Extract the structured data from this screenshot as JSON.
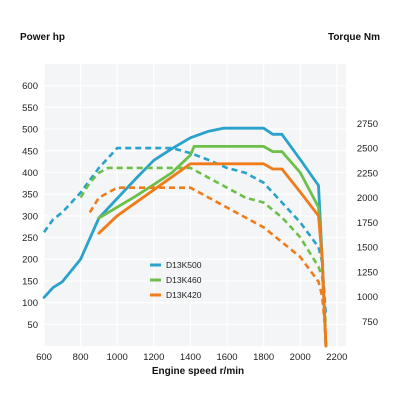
{
  "chart_data": {
    "type": "line",
    "left_axis_title": "Power hp",
    "right_axis_title": "Torque Nm",
    "xlabel": "Engine speed r/min",
    "xlim": [
      600,
      2250
    ],
    "y_left_lim": [
      0,
      650
    ],
    "y_right_lim": [
      500,
      3350
    ],
    "x_ticks": [
      600,
      800,
      1000,
      1200,
      1400,
      1600,
      1800,
      2000,
      2200
    ],
    "y_left_ticks": [
      50,
      100,
      150,
      200,
      250,
      300,
      350,
      400,
      450,
      500,
      550,
      600
    ],
    "y_right_ticks": [
      750,
      1000,
      1250,
      1500,
      1750,
      2000,
      2250,
      2500,
      2750
    ],
    "grid": true,
    "legend_position": "center-left",
    "series": [
      {
        "name": "D13K500",
        "color": "#2aa2cb",
        "power_hp": [
          [
            600,
            112
          ],
          [
            650,
            135
          ],
          [
            700,
            148
          ],
          [
            800,
            200
          ],
          [
            900,
            295
          ],
          [
            1000,
            340
          ],
          [
            1100,
            385
          ],
          [
            1200,
            428
          ],
          [
            1300,
            455
          ],
          [
            1400,
            480
          ],
          [
            1500,
            495
          ],
          [
            1580,
            502
          ],
          [
            1700,
            502
          ],
          [
            1800,
            502
          ],
          [
            1850,
            488
          ],
          [
            1900,
            488
          ],
          [
            2000,
            430
          ],
          [
            2100,
            370
          ],
          [
            2120,
            200
          ],
          [
            2140,
            0
          ]
        ],
        "torque_nm": [
          [
            600,
            1650
          ],
          [
            650,
            1780
          ],
          [
            700,
            1850
          ],
          [
            800,
            2050
          ],
          [
            900,
            2300
          ],
          [
            950,
            2400
          ],
          [
            1000,
            2500
          ],
          [
            1100,
            2500
          ],
          [
            1300,
            2500
          ],
          [
            1400,
            2450
          ],
          [
            1500,
            2380
          ],
          [
            1600,
            2300
          ],
          [
            1700,
            2250
          ],
          [
            1800,
            2150
          ],
          [
            1850,
            2050
          ],
          [
            1900,
            1950
          ],
          [
            2000,
            1750
          ],
          [
            2100,
            1500
          ],
          [
            2120,
            1350
          ],
          [
            2140,
            800
          ]
        ]
      },
      {
        "name": "D13K460",
        "color": "#6cc04a",
        "power_hp": [
          [
            900,
            295
          ],
          [
            1000,
            320
          ],
          [
            1100,
            345
          ],
          [
            1200,
            372
          ],
          [
            1300,
            400
          ],
          [
            1400,
            440
          ],
          [
            1420,
            460
          ],
          [
            1600,
            460
          ],
          [
            1700,
            460
          ],
          [
            1800,
            460
          ],
          [
            1850,
            448
          ],
          [
            1900,
            448
          ],
          [
            2000,
            400
          ],
          [
            2100,
            320
          ],
          [
            2120,
            200
          ],
          [
            2140,
            0
          ]
        ],
        "torque_nm": [
          [
            800,
            2000
          ],
          [
            850,
            2150
          ],
          [
            900,
            2250
          ],
          [
            950,
            2300
          ],
          [
            1000,
            2300
          ],
          [
            1100,
            2300
          ],
          [
            1200,
            2300
          ],
          [
            1400,
            2300
          ],
          [
            1500,
            2200
          ],
          [
            1600,
            2100
          ],
          [
            1700,
            2000
          ],
          [
            1800,
            1950
          ],
          [
            1900,
            1800
          ],
          [
            2000,
            1600
          ],
          [
            2100,
            1300
          ],
          [
            2120,
            1200
          ],
          [
            2140,
            700
          ]
        ]
      },
      {
        "name": "D13K420",
        "color": "#ef7b1a",
        "power_hp": [
          [
            900,
            260
          ],
          [
            1000,
            300
          ],
          [
            1100,
            330
          ],
          [
            1200,
            360
          ],
          [
            1300,
            390
          ],
          [
            1400,
            420
          ],
          [
            1500,
            420
          ],
          [
            1600,
            420
          ],
          [
            1700,
            420
          ],
          [
            1800,
            420
          ],
          [
            1850,
            408
          ],
          [
            1900,
            408
          ],
          [
            2000,
            355
          ],
          [
            2100,
            300
          ],
          [
            2120,
            200
          ],
          [
            2140,
            0
          ]
        ],
        "torque_nm": [
          [
            850,
            1850
          ],
          [
            900,
            2000
          ],
          [
            1000,
            2100
          ],
          [
            1100,
            2100
          ],
          [
            1200,
            2100
          ],
          [
            1300,
            2100
          ],
          [
            1400,
            2100
          ],
          [
            1500,
            2000
          ],
          [
            1600,
            1900
          ],
          [
            1700,
            1800
          ],
          [
            1800,
            1700
          ],
          [
            1900,
            1550
          ],
          [
            2000,
            1400
          ],
          [
            2100,
            1150
          ],
          [
            2120,
            1000
          ],
          [
            2140,
            600
          ]
        ]
      }
    ]
  }
}
